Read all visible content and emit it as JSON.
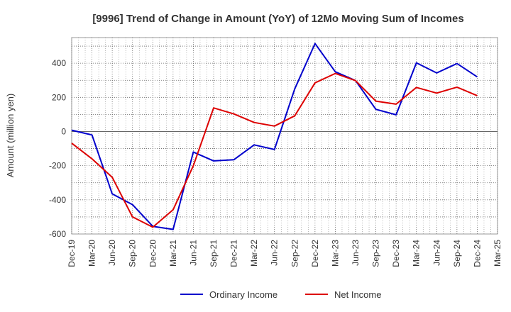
{
  "chart_data": {
    "type": "line",
    "title": "[9996]  Trend of Change in Amount (YoY) of 12Mo Moving Sum of Incomes",
    "xlabel": "",
    "ylabel": "Amount (million yen)",
    "ylim": [
      -600,
      550
    ],
    "yticks": [
      -600,
      -400,
      -200,
      0,
      200,
      400
    ],
    "categories": [
      "Dec-19",
      "Mar-20",
      "Jun-20",
      "Sep-20",
      "Dec-20",
      "Mar-21",
      "Jun-21",
      "Sep-21",
      "Dec-21",
      "Mar-22",
      "Jun-22",
      "Sep-22",
      "Dec-22",
      "Mar-23",
      "Jun-23",
      "Sep-23",
      "Dec-23",
      "Mar-24",
      "Jun-24",
      "Sep-24",
      "Dec-24",
      "Mar-25"
    ],
    "grid": true,
    "legend_position": "bottom",
    "series": [
      {
        "name": "Ordinary Income",
        "color": "#0000cc",
        "values": [
          8,
          -20,
          -365,
          -428,
          -555,
          -573,
          -120,
          -172,
          -165,
          -78,
          -105,
          250,
          515,
          350,
          298,
          130,
          98,
          402,
          343,
          398,
          320,
          null
        ]
      },
      {
        "name": "Net Income",
        "color": "#dd0000",
        "values": [
          -68,
          -160,
          -268,
          -500,
          -560,
          -458,
          -200,
          138,
          103,
          53,
          32,
          92,
          285,
          340,
          298,
          178,
          160,
          258,
          225,
          260,
          210,
          null
        ]
      }
    ]
  }
}
